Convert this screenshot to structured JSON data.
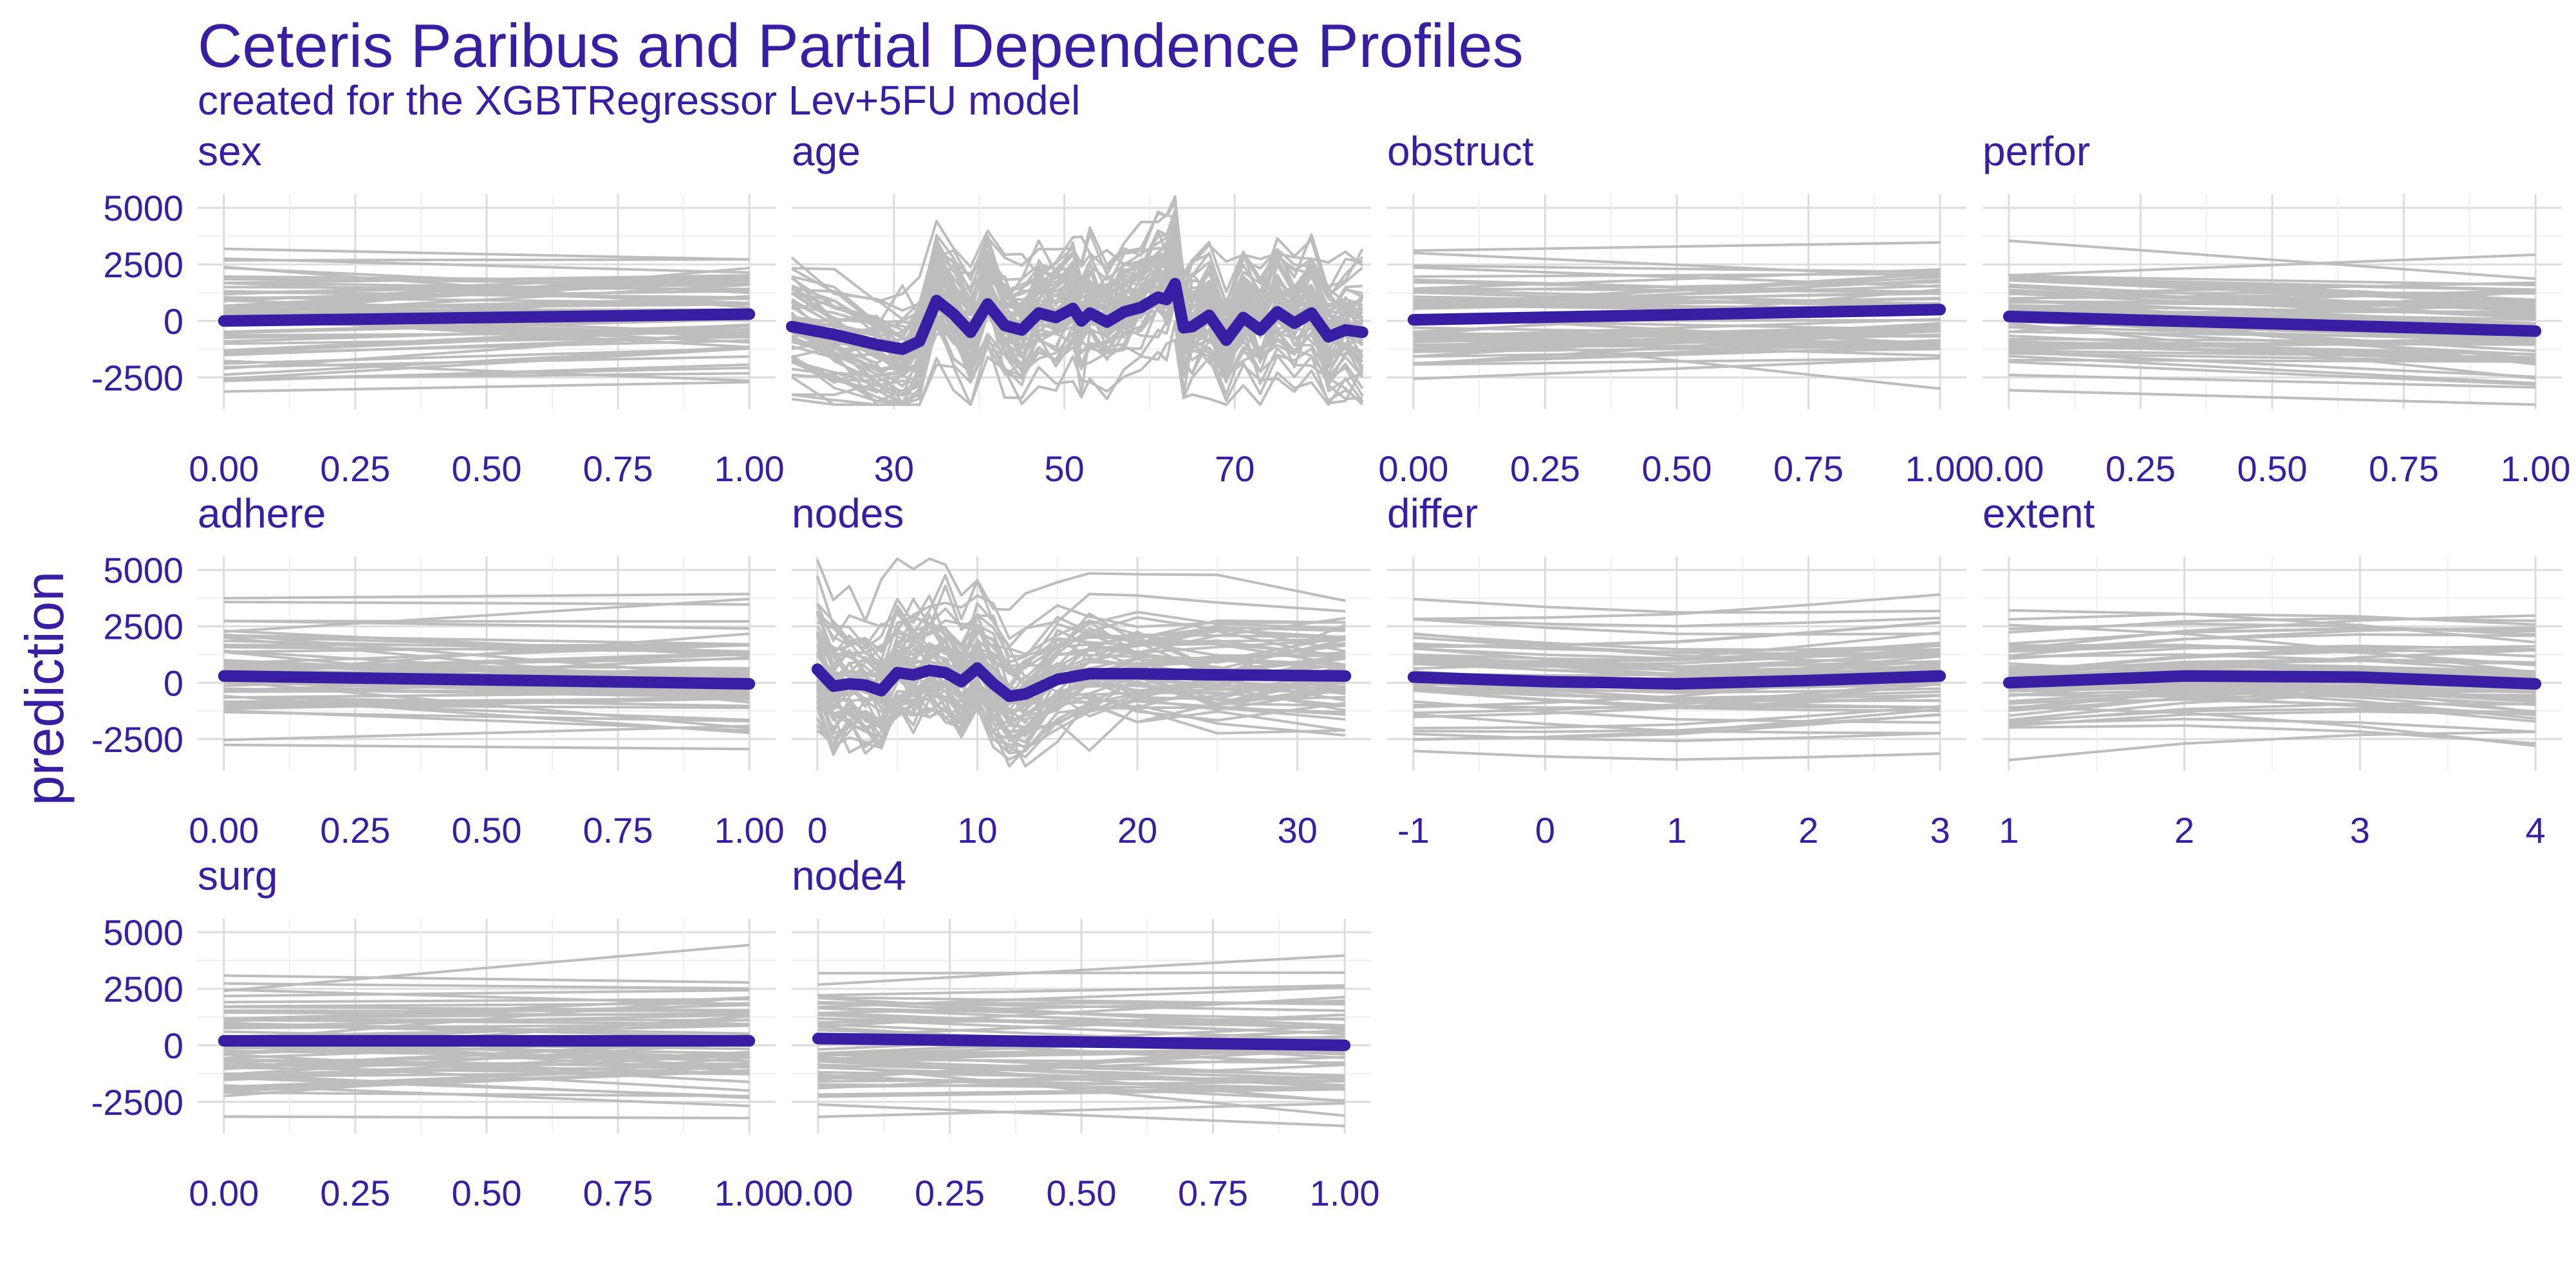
{
  "chart_data": {
    "type": "line",
    "title": "Ceteris Paribus and Partial Dependence Profiles",
    "subtitle": "created for the XGBTRegressor Lev+5FU model",
    "ylabel": "prediction",
    "ylim": [
      -3900,
      5600
    ],
    "y_ticks": [
      "-2500",
      "0",
      "2500",
      "5000"
    ],
    "y_tick_values": [
      -2500,
      0,
      2500,
      5000
    ],
    "grid": true,
    "colors": {
      "pd": "#371ea3",
      "cp": "#bdbdbd",
      "text": "#371ea3"
    },
    "panels": [
      {
        "title": "sex",
        "xlim": [
          -0.05,
          1.05
        ],
        "x_ticks": [
          "0.00",
          "0.25",
          "0.50",
          "0.75",
          "1.00"
        ],
        "x_tick_values": [
          0,
          0.25,
          0.5,
          0.75,
          1
        ],
        "pd": {
          "x": [
            0,
            1
          ],
          "y": [
            0,
            300
          ]
        }
      },
      {
        "title": "age",
        "xlim": [
          18,
          86
        ],
        "x_ticks": [
          "30",
          "50",
          "70"
        ],
        "x_tick_values": [
          30,
          50,
          70
        ],
        "pd": {
          "x": [
            18,
            23,
            28,
            31,
            33,
            35,
            37,
            39,
            41,
            43,
            45,
            47,
            49,
            51,
            52,
            53,
            55,
            57,
            59,
            61,
            62,
            63,
            64,
            65,
            67,
            69,
            71,
            73,
            75,
            77,
            79,
            81,
            83,
            85
          ],
          "y": [
            -250,
            -600,
            -1050,
            -1250,
            -900,
            900,
            300,
            -500,
            750,
            -200,
            -400,
            350,
            150,
            550,
            0,
            350,
            -50,
            400,
            600,
            1050,
            950,
            1650,
            -300,
            -250,
            250,
            -850,
            150,
            -400,
            400,
            -100,
            350,
            -700,
            -400,
            -500
          ]
        }
      },
      {
        "title": "obstruct",
        "xlim": [
          -0.05,
          1.05
        ],
        "x_ticks": [
          "0.00",
          "0.25",
          "0.50",
          "0.75",
          "1.00"
        ],
        "x_tick_values": [
          0,
          0.25,
          0.5,
          0.75,
          1
        ],
        "pd": {
          "x": [
            0,
            1
          ],
          "y": [
            50,
            500
          ]
        }
      },
      {
        "title": "perfor",
        "xlim": [
          -0.05,
          1.05
        ],
        "x_ticks": [
          "0.00",
          "0.25",
          "0.50",
          "0.75",
          "1.00"
        ],
        "x_tick_values": [
          0,
          0.25,
          0.5,
          0.75,
          1
        ],
        "pd": {
          "x": [
            0,
            1
          ],
          "y": [
            200,
            -450
          ]
        }
      },
      {
        "title": "adhere",
        "xlim": [
          -0.05,
          1.05
        ],
        "x_ticks": [
          "0.00",
          "0.25",
          "0.50",
          "0.75",
          "1.00"
        ],
        "x_tick_values": [
          0,
          0.25,
          0.5,
          0.75,
          1
        ],
        "pd": {
          "x": [
            0,
            1
          ],
          "y": [
            300,
            -50
          ]
        }
      },
      {
        "title": "nodes",
        "xlim": [
          -1.6,
          34.6
        ],
        "x_ticks": [
          "0",
          "10",
          "20",
          "30"
        ],
        "x_tick_values": [
          0,
          10,
          20,
          30
        ],
        "pd": {
          "x": [
            0,
            1,
            2,
            3,
            4,
            5,
            6,
            7,
            8,
            9,
            10,
            11,
            12,
            13,
            15,
            17,
            20,
            25,
            33
          ],
          "y": [
            600,
            -150,
            -50,
            -100,
            -350,
            450,
            350,
            550,
            450,
            50,
            650,
            -50,
            -600,
            -500,
            150,
            400,
            400,
            350,
            300
          ]
        }
      },
      {
        "title": "differ",
        "xlim": [
          -1.2,
          3.2
        ],
        "x_ticks": [
          "-1",
          "0",
          "1",
          "2",
          "3"
        ],
        "x_tick_values": [
          -1,
          0,
          1,
          2,
          3
        ],
        "pd": {
          "x": [
            -1,
            0,
            1,
            2,
            3
          ],
          "y": [
            250,
            50,
            -50,
            100,
            300
          ]
        }
      },
      {
        "title": "extent",
        "xlim": [
          0.85,
          4.15
        ],
        "x_ticks": [
          "1",
          "2",
          "3",
          "4"
        ],
        "x_tick_values": [
          1,
          2,
          3,
          4
        ],
        "pd": {
          "x": [
            1,
            2,
            3,
            4
          ],
          "y": [
            0,
            300,
            250,
            -50
          ]
        }
      },
      {
        "title": "surg",
        "xlim": [
          -0.05,
          1.05
        ],
        "x_ticks": [
          "0.00",
          "0.25",
          "0.50",
          "0.75",
          "1.00"
        ],
        "x_tick_values": [
          0,
          0.25,
          0.5,
          0.75,
          1
        ],
        "pd": {
          "x": [
            0,
            1
          ],
          "y": [
            200,
            200
          ]
        }
      },
      {
        "title": "node4",
        "xlim": [
          -0.05,
          1.05
        ],
        "x_ticks": [
          "0.00",
          "0.25",
          "0.50",
          "0.75",
          "1.00"
        ],
        "x_tick_values": [
          0,
          0.25,
          0.5,
          0.75,
          1
        ],
        "pd": {
          "x": [
            0,
            1
          ],
          "y": [
            300,
            0
          ]
        }
      }
    ]
  }
}
